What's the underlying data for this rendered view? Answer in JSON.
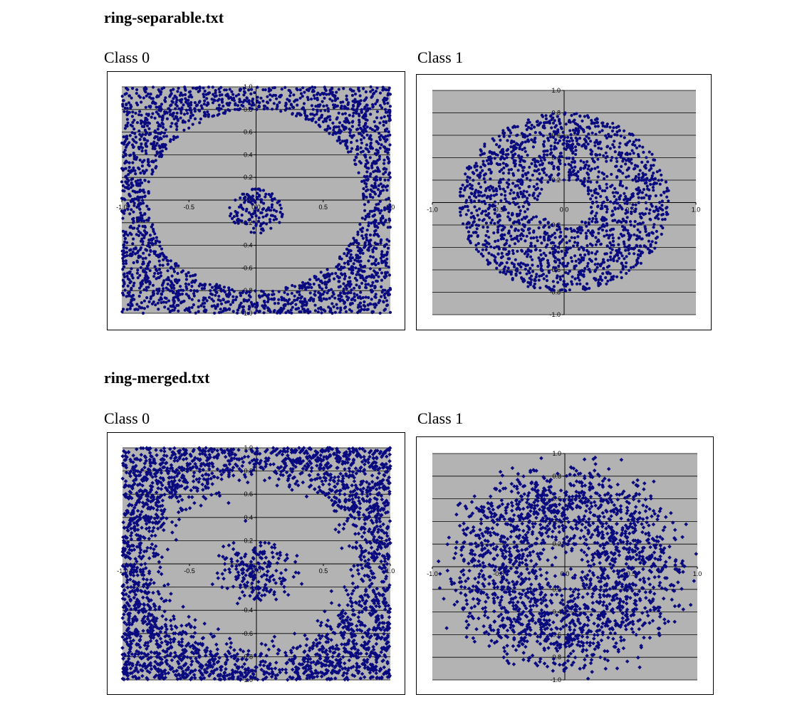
{
  "sections": [
    {
      "title": "ring-separable.txt"
    },
    {
      "title": "ring-merged.txt"
    }
  ],
  "labels": {
    "class0": "Class 0",
    "class1": "Class 1"
  },
  "colors": {
    "point": "#0a0a80",
    "plot_area": "#b3b3b3",
    "gridline": "#000000"
  },
  "chart_data": [
    {
      "type": "scatter",
      "dataset": "ring-separable.txt",
      "series": [
        {
          "label": "Class 0"
        }
      ],
      "marker": "circle",
      "distribution": "uniform in square outside ring r>0.8 plus small inner disk r<0.2 centered at (0,-0.1)",
      "xlim": [
        -1.0,
        1.0
      ],
      "ylim": [
        -1.0,
        1.0
      ],
      "xticks": [
        "-1.0",
        "-0.5",
        "0.0",
        "0.5",
        "1.0"
      ],
      "yticks": [
        "1.0",
        "0.8",
        "0.6",
        "0.4",
        "0.2",
        "0.0",
        "-0.2",
        "-0.4",
        "-0.6",
        "-0.8",
        "-1.0"
      ],
      "grid": "horizontal"
    },
    {
      "type": "scatter",
      "dataset": "ring-separable.txt",
      "series": [
        {
          "label": "Class 1"
        }
      ],
      "marker": "circle",
      "distribution": "ring 0.2 < r < 0.8",
      "xlim": [
        -1.0,
        1.0
      ],
      "ylim": [
        -1.0,
        1.0
      ],
      "xticks": [
        "-1.0",
        "-0.5",
        "0.0",
        "0.5",
        "1.0"
      ],
      "yticks": [
        "1.0",
        "0.8",
        "0.6",
        "0.4",
        "0.2",
        "0.0",
        "-0.2",
        "-0.4",
        "-0.6",
        "-0.8",
        "-1.0"
      ],
      "grid": "horizontal"
    },
    {
      "type": "scatter",
      "dataset": "ring-merged.txt",
      "series": [
        {
          "label": "Class 0"
        }
      ],
      "marker": "diamond",
      "distribution": "noisy square minus noisy ring",
      "xlim": [
        -1.0,
        1.0
      ],
      "ylim": [
        -1.0,
        1.0
      ],
      "xticks": [
        "-1.0",
        "-0.5",
        "0.0",
        "0.5",
        "1.0"
      ],
      "yticks": [
        "1.0",
        "0.8",
        "0.6",
        "0.4",
        "0.2",
        "0.0",
        "-0.2",
        "-0.4",
        "-0.6",
        "-0.8",
        "-1.0"
      ],
      "grid": "horizontal"
    },
    {
      "type": "scatter",
      "dataset": "ring-merged.txt",
      "series": [
        {
          "label": "Class 1"
        }
      ],
      "marker": "diamond",
      "distribution": "noisy ring",
      "xlim": [
        -1.0,
        1.0
      ],
      "ylim": [
        -1.0,
        1.0
      ],
      "xticks": [
        "-1.0",
        "-0.5",
        "0.0",
        "0.5",
        "1.0"
      ],
      "yticks": [
        "1.0",
        "0.8",
        "0.6",
        "0.4",
        "0.2",
        "0.0",
        "-0.2",
        "-0.4",
        "-0.6",
        "-0.8",
        "-1.0"
      ],
      "grid": "horizontal"
    }
  ]
}
